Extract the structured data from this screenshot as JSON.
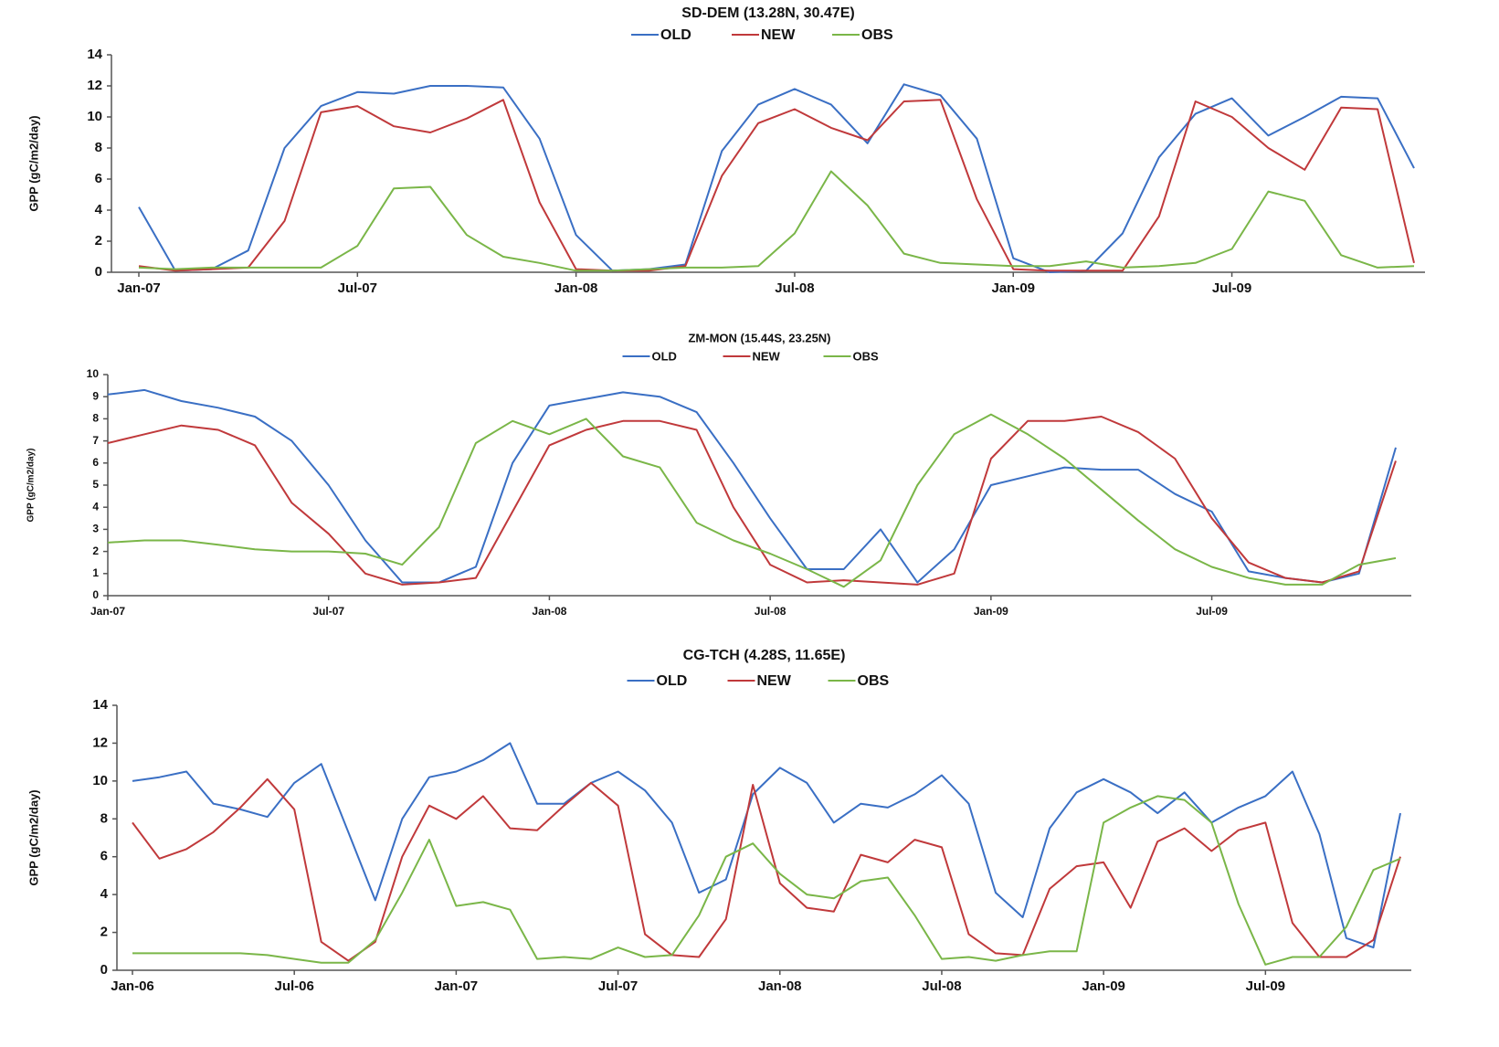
{
  "chart_data": [
    {
      "type": "line",
      "title": "SD-DEM (13.28N, 30.47E)",
      "y_label": "GPP (gC/m2/day)",
      "categories": [
        "Jan-07",
        null,
        null,
        null,
        null,
        null,
        "Jul-07",
        null,
        null,
        null,
        null,
        null,
        "Jan-08",
        null,
        null,
        null,
        null,
        null,
        "Jul-08",
        null,
        null,
        null,
        null,
        null,
        "Jan-09",
        null,
        null,
        null,
        null,
        null,
        "Jul-09",
        null,
        null,
        null,
        null,
        null
      ],
      "ylim": [
        0,
        14
      ],
      "yticks": [
        0,
        2,
        4,
        6,
        8,
        10,
        12,
        14
      ],
      "series": [
        {
          "name": "OLD",
          "color": "#3a6fc4",
          "values": [
            4.2,
            0.1,
            0.2,
            1.4,
            8.0,
            10.7,
            11.6,
            11.5,
            12.0,
            12.0,
            11.9,
            8.6,
            2.4,
            0.1,
            0.2,
            0.5,
            7.8,
            10.8,
            11.8,
            10.8,
            8.3,
            12.1,
            11.4,
            8.6,
            0.9,
            0.0,
            0.1,
            2.5,
            7.4,
            10.2,
            11.2,
            8.8,
            10.0,
            11.3,
            11.2,
            6.7
          ]
        },
        {
          "name": "NEW",
          "color": "#c0393b",
          "values": [
            0.4,
            0.1,
            0.2,
            0.3,
            3.3,
            10.3,
            10.7,
            9.4,
            9.0,
            9.9,
            11.1,
            4.5,
            0.2,
            0.1,
            0.1,
            0.4,
            6.2,
            9.6,
            10.5,
            9.3,
            8.5,
            11.0,
            11.1,
            4.7,
            0.2,
            0.1,
            0.1,
            0.1,
            3.6,
            11.0,
            10.0,
            8.0,
            6.6,
            10.6,
            10.5,
            0.6
          ]
        },
        {
          "name": "OBS",
          "color": "#7ab648",
          "values": [
            0.3,
            0.2,
            0.3,
            0.3,
            0.3,
            0.3,
            1.7,
            5.4,
            5.5,
            2.4,
            1.0,
            0.6,
            0.1,
            0.1,
            0.2,
            0.3,
            0.3,
            0.4,
            2.5,
            6.5,
            4.3,
            1.2,
            0.6,
            0.5,
            0.4,
            0.4,
            0.7,
            0.3,
            0.4,
            0.6,
            1.5,
            5.2,
            4.6,
            1.1,
            0.3,
            0.4
          ]
        }
      ]
    },
    {
      "type": "line",
      "title": "ZM-MON (15.44S, 23.25N)",
      "y_label": "GPP (gC/m2/day)",
      "categories": [
        "Jan-07",
        null,
        null,
        null,
        null,
        null,
        "Jul-07",
        null,
        null,
        null,
        null,
        null,
        "Jan-08",
        null,
        null,
        null,
        null,
        null,
        "Jul-08",
        null,
        null,
        null,
        null,
        null,
        "Jan-09",
        null,
        null,
        null,
        null,
        null,
        "Jul-09",
        null,
        null,
        null,
        null,
        null
      ],
      "ylim": [
        0,
        10
      ],
      "yticks": [
        0,
        1,
        2,
        3,
        4,
        5,
        6,
        7,
        8,
        9,
        10
      ],
      "series": [
        {
          "name": "OLD",
          "color": "#3a6fc4",
          "values": [
            9.1,
            9.3,
            8.8,
            8.5,
            8.1,
            7.0,
            5.0,
            2.5,
            0.6,
            0.6,
            1.3,
            6.0,
            8.6,
            8.9,
            9.2,
            9.0,
            8.3,
            6.0,
            3.5,
            1.2,
            1.2,
            3.0,
            0.6,
            2.1,
            5.0,
            5.4,
            5.8,
            5.7,
            5.7,
            4.6,
            3.8,
            1.1,
            0.8,
            0.6,
            1.0,
            6.7
          ]
        },
        {
          "name": "NEW",
          "color": "#c0393b",
          "values": [
            6.9,
            7.3,
            7.7,
            7.5,
            6.8,
            4.2,
            2.8,
            1.0,
            0.5,
            0.6,
            0.8,
            3.8,
            6.8,
            7.5,
            7.9,
            7.9,
            7.5,
            4.0,
            1.4,
            0.6,
            0.7,
            0.6,
            0.5,
            1.0,
            6.2,
            7.9,
            7.9,
            8.1,
            7.4,
            6.2,
            3.5,
            1.5,
            0.8,
            0.6,
            1.1,
            6.1
          ]
        },
        {
          "name": "OBS",
          "color": "#7ab648",
          "values": [
            2.4,
            2.5,
            2.5,
            2.3,
            2.1,
            2.0,
            2.0,
            1.9,
            1.4,
            3.1,
            6.9,
            7.9,
            7.3,
            8.0,
            6.3,
            5.8,
            3.3,
            2.5,
            1.9,
            1.2,
            0.4,
            1.6,
            5.0,
            7.3,
            8.2,
            7.3,
            6.2,
            4.8,
            3.4,
            2.1,
            1.3,
            0.8,
            0.5,
            0.5,
            1.4,
            1.7
          ]
        }
      ]
    },
    {
      "type": "line",
      "title": "CG-TCH (4.28S, 11.65E)",
      "y_label": "GPP (gC/m2/day)",
      "categories": [
        "Jan-06",
        null,
        null,
        null,
        null,
        null,
        "Jul-06",
        null,
        null,
        null,
        null,
        null,
        "Jan-07",
        null,
        null,
        null,
        null,
        null,
        "Jul-07",
        null,
        null,
        null,
        null,
        null,
        "Jan-08",
        null,
        null,
        null,
        null,
        null,
        "Jul-08",
        null,
        null,
        null,
        null,
        null,
        "Jan-09",
        null,
        null,
        null,
        null,
        null,
        "Jul-09",
        null,
        null,
        null,
        null,
        null
      ],
      "ylim": [
        0,
        14
      ],
      "yticks": [
        0,
        2,
        4,
        6,
        8,
        10,
        12,
        14
      ],
      "series": [
        {
          "name": "OLD",
          "color": "#3a6fc4",
          "values": [
            10.0,
            10.2,
            10.5,
            8.8,
            8.5,
            8.1,
            9.9,
            10.9,
            7.3,
            3.7,
            8.0,
            10.2,
            10.5,
            11.1,
            12.0,
            8.8,
            8.8,
            9.9,
            10.5,
            9.5,
            7.8,
            4.1,
            4.8,
            9.3,
            10.7,
            9.9,
            7.8,
            8.8,
            8.6,
            9.3,
            10.3,
            8.8,
            4.1,
            2.8,
            7.5,
            9.4,
            10.1,
            9.4,
            8.3,
            9.4,
            7.8,
            8.6,
            9.2,
            10.5,
            7.2,
            1.7,
            1.2,
            8.3
          ]
        },
        {
          "name": "NEW",
          "color": "#c0393b",
          "values": [
            7.8,
            5.9,
            6.4,
            7.3,
            8.6,
            10.1,
            8.5,
            1.5,
            0.5,
            1.5,
            6.0,
            8.7,
            8.0,
            9.2,
            7.5,
            7.4,
            8.7,
            9.9,
            8.7,
            1.9,
            0.8,
            0.7,
            2.7,
            9.8,
            4.6,
            3.3,
            3.1,
            6.1,
            5.7,
            6.9,
            6.5,
            1.9,
            0.9,
            0.8,
            4.3,
            5.5,
            5.7,
            3.3,
            6.8,
            7.5,
            6.3,
            7.4,
            7.8,
            2.5,
            0.7,
            0.7,
            1.6,
            6.0
          ]
        },
        {
          "name": "OBS",
          "color": "#7ab648",
          "values": [
            0.9,
            0.9,
            0.9,
            0.9,
            0.9,
            0.8,
            0.6,
            0.4,
            0.4,
            1.6,
            4.1,
            6.9,
            3.4,
            3.6,
            3.2,
            0.6,
            0.7,
            0.6,
            1.2,
            0.7,
            0.8,
            2.9,
            6.0,
            6.7,
            5.1,
            4.0,
            3.8,
            4.7,
            4.9,
            2.9,
            0.6,
            0.7,
            0.5,
            0.8,
            1.0,
            1.0,
            7.8,
            8.6,
            9.2,
            9.0,
            7.8,
            3.5,
            0.3,
            0.7,
            0.7,
            2.3,
            5.3,
            5.9
          ]
        }
      ]
    }
  ]
}
